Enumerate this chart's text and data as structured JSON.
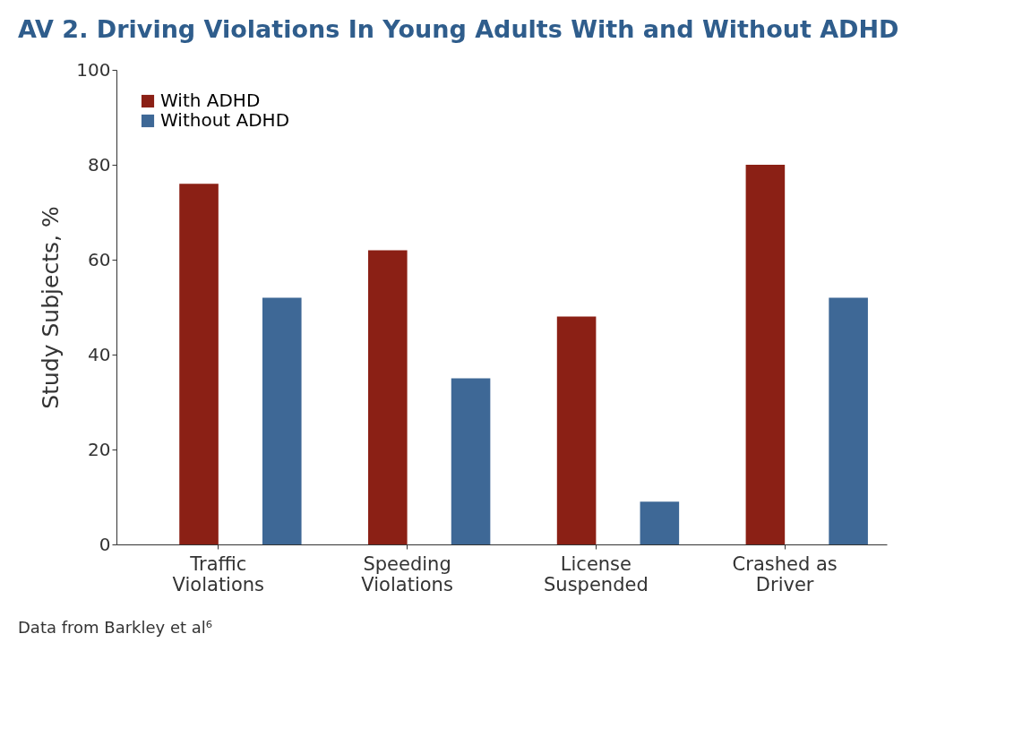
{
  "chart_data": {
    "type": "bar",
    "title": "AV 2. Driving Violations In Young Adults With and Without ADHD",
    "ylabel": "Study Subjects, %",
    "categories": [
      "Traffic\nViolations",
      "Speeding\nViolations",
      "License\nSuspended",
      "Crashed as\nDriver"
    ],
    "series": [
      {
        "name": "With ADHD",
        "color": "#8b2015",
        "values": [
          76,
          62,
          48,
          80
        ]
      },
      {
        "name": "Without ADHD",
        "color": "#3e6896",
        "values": [
          52,
          35,
          9,
          52
        ]
      }
    ],
    "ylim": [
      0,
      100
    ],
    "yticks": [
      0,
      20,
      40,
      60,
      80,
      100
    ],
    "grid": false,
    "legend": "top left",
    "annotations": [
      "Data from Barkley et al⁶"
    ]
  }
}
